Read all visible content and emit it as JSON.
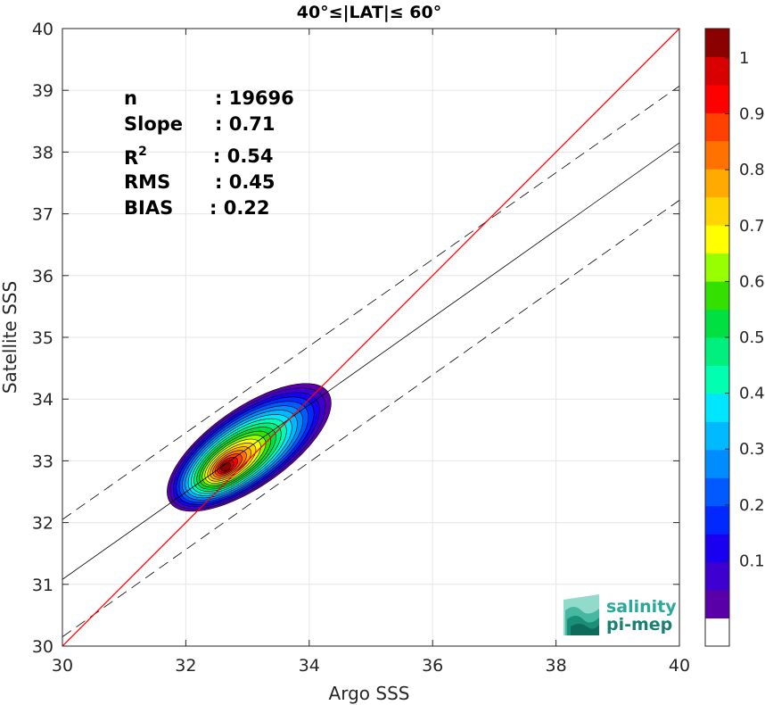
{
  "chart_data": {
    "type": "heatmap",
    "title": "40°≤|LAT|≤ 60°",
    "xlabel": "Argo SSS",
    "ylabel": "Satellite SSS",
    "xlim": [
      30,
      40
    ],
    "ylim": [
      30,
      40
    ],
    "xticks": [
      "30",
      "32",
      "34",
      "36",
      "38",
      "40"
    ],
    "yticks": [
      "30",
      "31",
      "32",
      "33",
      "34",
      "35",
      "36",
      "37",
      "38",
      "39",
      "40"
    ],
    "grid": true,
    "stats": [
      {
        "label": "n",
        "value": ": 19696"
      },
      {
        "label": "Slope",
        "value": ": 0.71"
      },
      {
        "label": "R",
        "sup": "2",
        "value": ": 0.54"
      },
      {
        "label": "RMS",
        "value": ": 0.45"
      },
      {
        "label": "BIAS",
        "value": ": 0.22"
      }
    ],
    "reference_lines": {
      "one_to_one": {
        "x": [
          30,
          40
        ],
        "y": [
          30,
          40
        ],
        "color": "#ff0000"
      },
      "regression": {
        "x": [
          30,
          40
        ],
        "y": [
          31.08,
          38.15
        ],
        "color": "#000000"
      },
      "upper_bound": {
        "x": [
          30,
          40
        ],
        "y": [
          32.05,
          39.07
        ],
        "color": "#000000"
      },
      "lower_bound": {
        "x": [
          30,
          40
        ],
        "y": [
          30.15,
          37.22
        ],
        "color": "#000000"
      }
    },
    "density_peak": {
      "x": 32.65,
      "y": 32.9
    },
    "contour_levels": [
      0.05,
      0.1,
      0.15,
      0.2,
      0.25,
      0.3,
      0.35,
      0.4,
      0.45,
      0.5,
      0.55,
      0.6,
      0.65,
      0.7,
      0.75,
      0.8,
      0.85,
      0.9,
      0.95
    ],
    "colorbar": {
      "ticks": [
        "0.1",
        "0.2",
        "0.3",
        "0.4",
        "0.5",
        "0.6",
        "0.7",
        "0.8",
        "0.9",
        "1"
      ],
      "colors": [
        "#ffffff",
        "#5a00a8",
        "#3d00d0",
        "#1a00f0",
        "#0028ff",
        "#005aff",
        "#008cff",
        "#00b9ff",
        "#00e6ff",
        "#00ffb0",
        "#00f080",
        "#00e040",
        "#34e000",
        "#98ff00",
        "#ffff00",
        "#ffd500",
        "#ffaa00",
        "#ff7200",
        "#ff4000",
        "#ff0000",
        "#d80000",
        "#8b0000"
      ]
    }
  },
  "logo": {
    "line1": "salinity",
    "line2": "pi-mep"
  }
}
